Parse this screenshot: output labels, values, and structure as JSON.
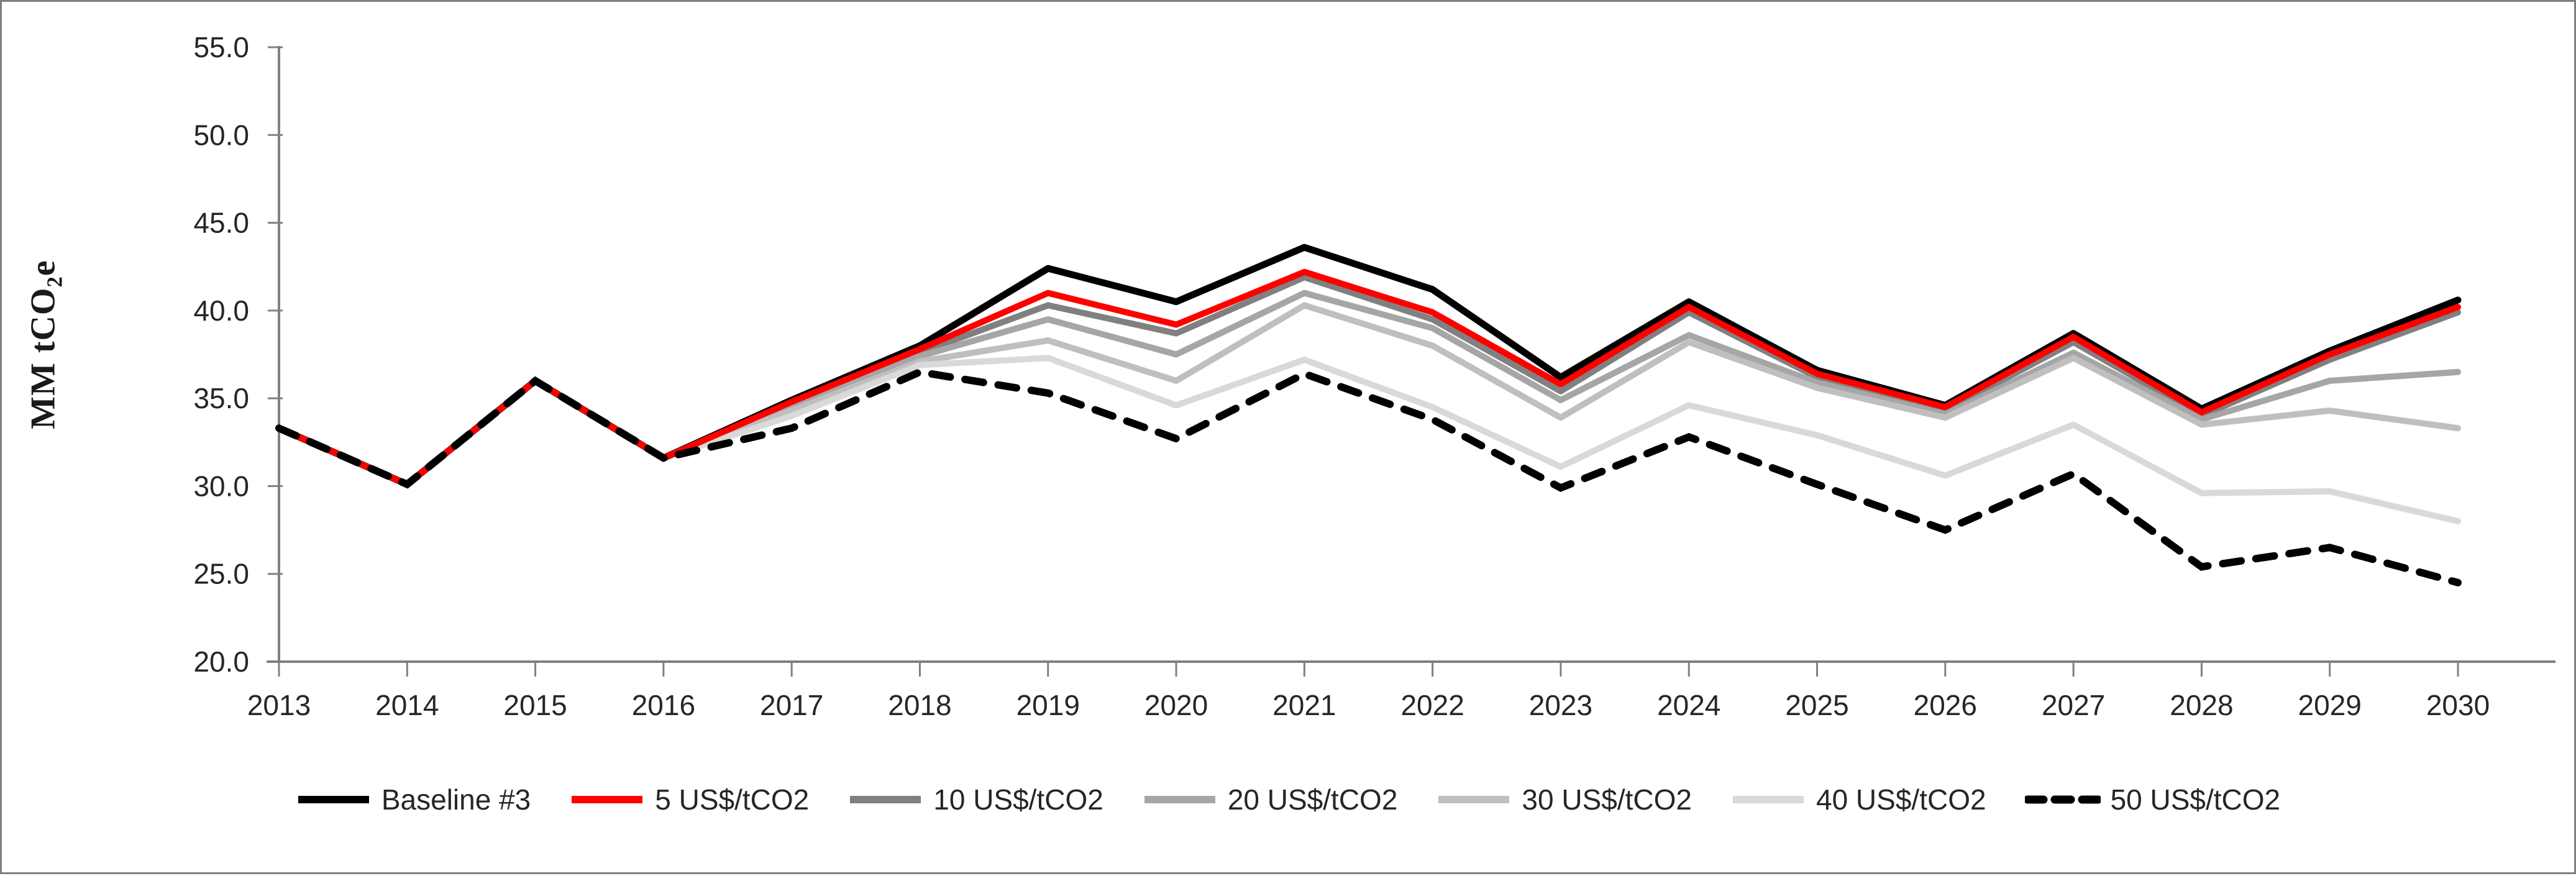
{
  "chart_data": {
    "type": "line",
    "title": "",
    "ylabel": "MM tCO2e",
    "ylabel_parts": {
      "prefix": "MM tCO",
      "sub": "2",
      "suffix": "e"
    },
    "xlabel": "",
    "grid": false,
    "legend_position": "bottom",
    "ylim": [
      20.0,
      55.0
    ],
    "ytick_step": 5.0,
    "ytick_labels": [
      "20.0",
      "25.0",
      "30.0",
      "35.0",
      "40.0",
      "45.0",
      "50.0",
      "55.0"
    ],
    "categories": [
      "2013",
      "2014",
      "2015",
      "2016",
      "2017",
      "2018",
      "2019",
      "2020",
      "2021",
      "2022",
      "2023",
      "2024",
      "2025",
      "2026",
      "2027",
      "2028",
      "2029",
      "2030"
    ],
    "axis_color": "#808080",
    "text_color": "#262626",
    "series": [
      {
        "name": "Baseline #3",
        "color": "#000000",
        "dash": null,
        "width": 11,
        "values": [
          33.3,
          30.1,
          36.0,
          31.6,
          34.9,
          38.0,
          42.4,
          40.5,
          43.6,
          41.2,
          36.2,
          40.5,
          36.6,
          34.6,
          38.7,
          34.4,
          37.7,
          40.6
        ]
      },
      {
        "name": "5 US$/tCO2",
        "color": "#FF0000",
        "dash": null,
        "width": 10,
        "values": [
          33.3,
          30.1,
          36.0,
          31.6,
          34.8,
          37.8,
          41.0,
          39.2,
          42.2,
          39.9,
          35.8,
          40.2,
          36.4,
          34.5,
          38.5,
          34.2,
          37.5,
          40.2
        ]
      },
      {
        "name": "10 US$/tCO2",
        "color": "#808080",
        "dash": null,
        "width": 10,
        "values": [
          33.3,
          30.1,
          36.0,
          31.6,
          34.6,
          37.6,
          40.3,
          38.7,
          41.9,
          39.5,
          35.4,
          39.9,
          36.2,
          34.3,
          38.2,
          34.0,
          37.2,
          39.9
        ]
      },
      {
        "name": "20 US$/tCO2",
        "color": "#A6A6A6",
        "dash": null,
        "width": 10,
        "values": [
          33.3,
          30.1,
          36.0,
          31.6,
          34.5,
          37.4,
          39.5,
          37.5,
          41.0,
          39.0,
          34.9,
          38.6,
          35.9,
          34.1,
          37.6,
          33.8,
          36.0,
          36.5
        ]
      },
      {
        "name": "30 US$/tCO2",
        "color": "#BFBFBF",
        "dash": null,
        "width": 10,
        "values": [
          33.3,
          30.1,
          36.0,
          31.6,
          34.3,
          37.1,
          38.3,
          36.0,
          40.3,
          38.0,
          33.9,
          38.2,
          35.6,
          33.9,
          37.3,
          33.5,
          34.3,
          33.3
        ]
      },
      {
        "name": "40 US$/tCO2",
        "color": "#D9D9D9",
        "dash": null,
        "width": 10,
        "values": [
          33.3,
          30.1,
          36.0,
          31.6,
          34.0,
          36.9,
          37.3,
          34.6,
          37.2,
          34.5,
          31.1,
          34.6,
          32.9,
          30.6,
          33.5,
          29.6,
          29.7,
          28.0
        ]
      },
      {
        "name": "50 US$/tCO2",
        "color": "#000000",
        "dash": "30 24",
        "width": 12,
        "values": [
          33.3,
          30.1,
          36.0,
          31.6,
          33.3,
          36.5,
          35.3,
          32.7,
          36.4,
          33.8,
          29.9,
          32.8,
          30.1,
          27.5,
          30.7,
          25.4,
          26.5,
          24.5
        ]
      }
    ]
  }
}
